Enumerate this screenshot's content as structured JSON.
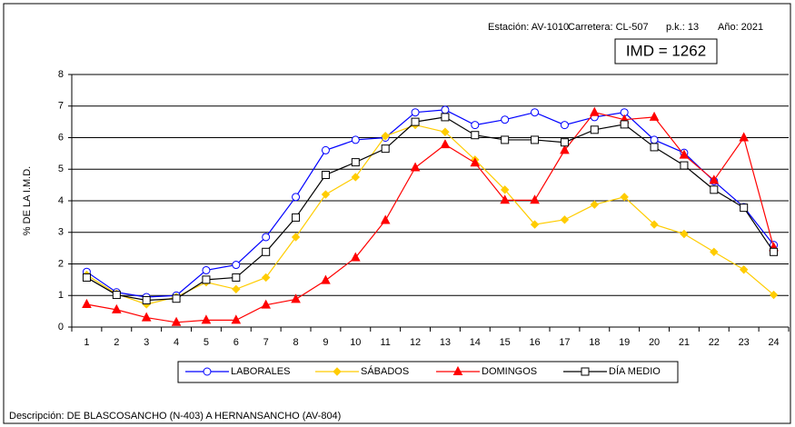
{
  "chart_data": {
    "type": "line",
    "info": [
      "Estación: AV-1010",
      "Carretera: CL-507",
      "p.k.: 13",
      "Año: 2021"
    ],
    "annotation": "IMD = 1262",
    "ylabel": "% DE LA I.M.D.",
    "description": "Descripción: DE BLASCOSANCHO (N-403) A HERNANSANCHO (AV-804)",
    "categories": [
      "1",
      "2",
      "3",
      "4",
      "5",
      "6",
      "7",
      "8",
      "9",
      "10",
      "11",
      "12",
      "13",
      "14",
      "15",
      "16",
      "17",
      "18",
      "19",
      "20",
      "21",
      "22",
      "23",
      "24"
    ],
    "ylim": [
      0,
      8
    ],
    "yticks": [
      0,
      1,
      2,
      3,
      4,
      5,
      6,
      7,
      8
    ],
    "grid": true,
    "legend": "bottom",
    "series": [
      {
        "name": "LABORALES",
        "color": "#0000ff",
        "marker": "circle",
        "values": [
          1.75,
          1.1,
          0.95,
          1.0,
          1.8,
          1.97,
          2.85,
          4.12,
          5.6,
          5.93,
          6.0,
          6.8,
          6.88,
          6.4,
          6.57,
          6.8,
          6.4,
          6.65,
          6.8,
          5.93,
          5.52,
          4.62,
          3.8,
          2.6
        ]
      },
      {
        "name": "SÁBADOS",
        "color": "#ffcc00",
        "marker": "diamond",
        "values": [
          1.65,
          1.05,
          0.72,
          0.95,
          1.42,
          1.2,
          1.57,
          2.85,
          4.2,
          4.75,
          6.05,
          6.4,
          6.18,
          5.3,
          4.35,
          3.25,
          3.4,
          3.88,
          4.12,
          3.25,
          2.95,
          2.38,
          1.82,
          1.02
        ]
      },
      {
        "name": "DOMINGOS",
        "color": "#ff0000",
        "marker": "triangle",
        "values": [
          0.72,
          0.55,
          0.3,
          0.15,
          0.22,
          0.22,
          0.7,
          0.88,
          1.48,
          2.2,
          3.38,
          5.05,
          5.78,
          5.2,
          4.02,
          4.02,
          5.6,
          6.8,
          6.57,
          6.65,
          5.45,
          4.65,
          6.0,
          2.52
        ]
      },
      {
        "name": "DÍA MEDIO",
        "color": "#000000",
        "marker": "square",
        "values": [
          1.57,
          1.02,
          0.85,
          0.9,
          1.5,
          1.57,
          2.38,
          3.47,
          4.82,
          5.22,
          5.65,
          6.5,
          6.65,
          6.08,
          5.93,
          5.93,
          5.85,
          6.25,
          6.42,
          5.7,
          5.12,
          4.35,
          3.78,
          2.38
        ]
      }
    ]
  }
}
